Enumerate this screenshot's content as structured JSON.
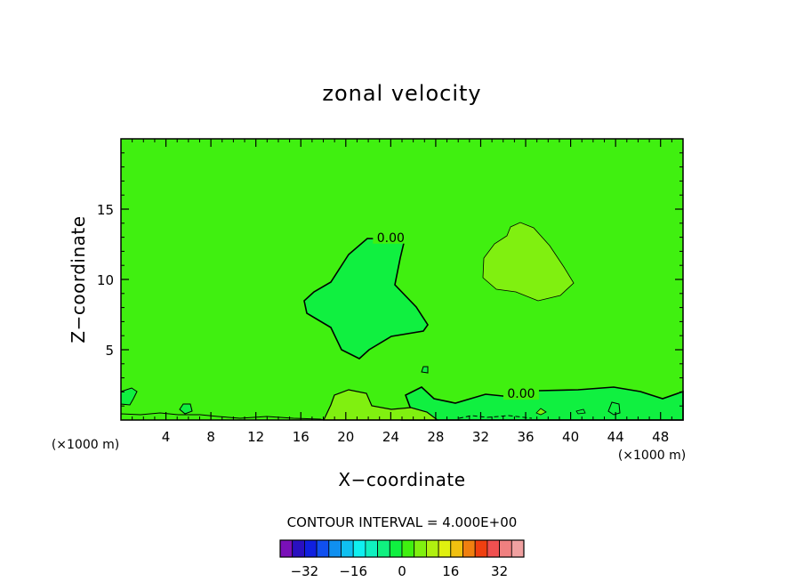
{
  "chart_data": {
    "type": "heatmap",
    "title": "zonal velocity",
    "xlabel": "X−coordinate",
    "ylabel": "Z−coordinate",
    "x_unit": "(×1000 m)",
    "xlim": [
      0,
      50
    ],
    "ylim": [
      0,
      20
    ],
    "x_ticks": [
      4,
      8,
      12,
      16,
      20,
      24,
      28,
      32,
      36,
      40,
      44,
      48
    ],
    "x_tick_labels": [
      "4",
      "8",
      "12",
      "16",
      "20",
      "24",
      "28",
      "32",
      "36",
      "40",
      "44",
      "48"
    ],
    "y_ticks": [
      5,
      10,
      15
    ],
    "y_tick_labels": [
      "5",
      "10",
      "15"
    ],
    "contour_labels": [
      {
        "text": "0.00",
        "x": 24,
        "y": 12.8
      },
      {
        "text": "0.00",
        "x": 35.6,
        "y": 1.7
      }
    ],
    "contour_interval_text": "CONTOUR INTERVAL = 4.000E+00",
    "colorbar": {
      "levels": [
        -36,
        -32,
        -28,
        -24,
        -20,
        -16,
        -12,
        -8,
        -4,
        0,
        4,
        8,
        12,
        16,
        20,
        24,
        28,
        32,
        36
      ],
      "colors": [
        "#7a10b8",
        "#2a10c0",
        "#1020e0",
        "#1050f0",
        "#1090f0",
        "#10c0f0",
        "#10f0f0",
        "#10f0c0",
        "#10f080",
        "#10f040",
        "#40f010",
        "#80f010",
        "#b0f010",
        "#e0f010",
        "#f0c010",
        "#f08010",
        "#f04010",
        "#f05050",
        "#f08080",
        "#f0a0a0"
      ],
      "tick_values": [
        -32,
        -16,
        0,
        16,
        32
      ],
      "tick_labels": [
        "−32",
        "−16",
        "0",
        "16",
        "32"
      ]
    },
    "background_color": "#40f010"
  }
}
